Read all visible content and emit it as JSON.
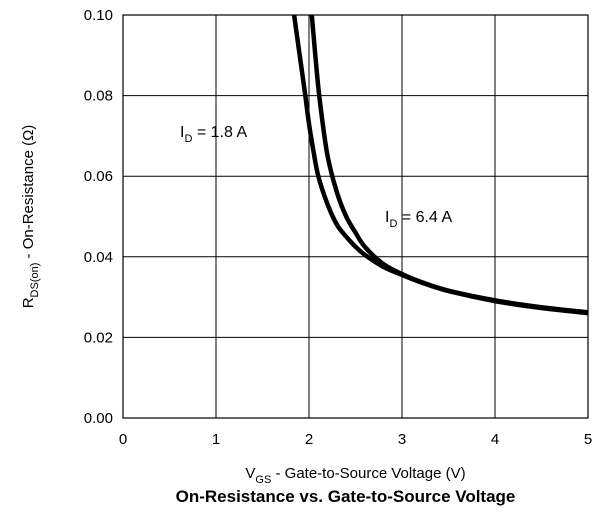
{
  "chart_data": {
    "type": "line",
    "title": "On-Resistance vs. Gate-to-Source Voltage",
    "xlabel": {
      "main": "V",
      "sub": "GS",
      "rest": " -  Gate-to-Source Voltage (V)"
    },
    "ylabel": {
      "main": "R",
      "sub": "DS(on)",
      "rest": "  -  On-Resistance (Ω)"
    },
    "xlim": [
      0,
      5
    ],
    "ylim": [
      0,
      0.1
    ],
    "xticks": [
      "0",
      "1",
      "2",
      "3",
      "4",
      "5"
    ],
    "yticks": [
      "0.00",
      "0.02",
      "0.04",
      "0.06",
      "0.08",
      "0.10"
    ],
    "grid": true,
    "series": [
      {
        "name": {
          "main": "I",
          "sub": "D",
          "rest": " = 1.8 A"
        },
        "x": [
          1.84,
          1.9,
          1.96,
          2.0,
          2.05,
          2.1,
          2.2,
          2.3,
          2.4,
          2.5,
          2.6,
          2.8,
          3.0,
          3.2,
          3.5,
          4.0,
          4.5,
          5.0
        ],
        "y": [
          0.1,
          0.09,
          0.08,
          0.073,
          0.066,
          0.06,
          0.053,
          0.048,
          0.045,
          0.0425,
          0.0405,
          0.0375,
          0.0355,
          0.0337,
          0.0315,
          0.029,
          0.0273,
          0.026
        ]
      },
      {
        "name": {
          "main": "I",
          "sub": "D",
          "rest": " = 6.4 A"
        },
        "x": [
          2.03,
          2.08,
          2.12,
          2.2,
          2.3,
          2.4,
          2.5,
          2.6,
          2.8,
          3.0,
          3.2,
          3.5,
          4.0,
          4.5,
          5.0
        ],
        "y": [
          0.1,
          0.087,
          0.078,
          0.065,
          0.056,
          0.05,
          0.046,
          0.0425,
          0.0382,
          0.0357,
          0.0338,
          0.0316,
          0.0292,
          0.0275,
          0.0262
        ]
      }
    ]
  }
}
